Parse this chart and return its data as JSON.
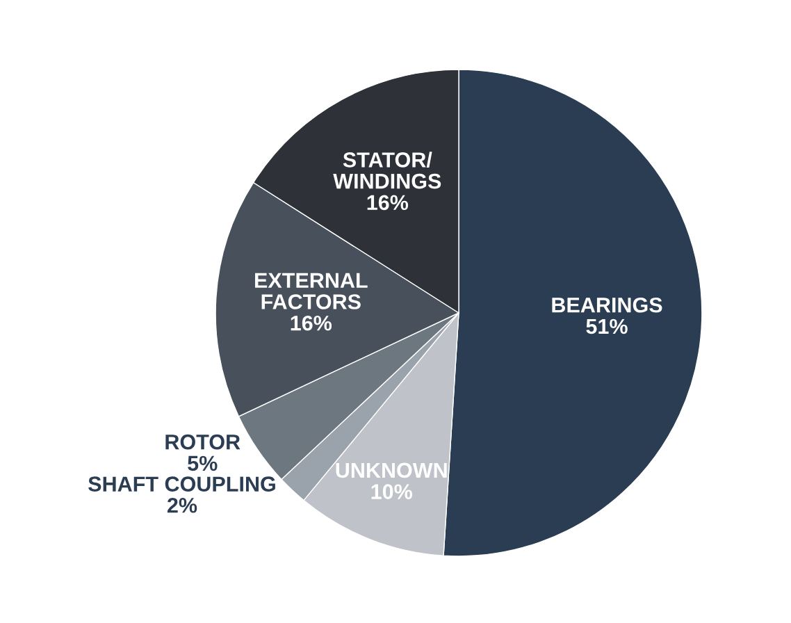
{
  "chart_data": {
    "type": "pie",
    "categories": [
      "BEARINGS",
      "UNKNOWN",
      "SHAFT COUPLING",
      "ROTOR",
      "EXTERNAL\nFACTORS",
      "STATOR/\nWINDINGS"
    ],
    "values": [
      51,
      10,
      2,
      5,
      16,
      16
    ],
    "value_labels": [
      "51%",
      "10%",
      "2%",
      "5%",
      "16%",
      "16%"
    ],
    "colors": [
      "#2b3d52",
      "#bfc3c9",
      "#9aa3ab",
      "#6d7780",
      "#47505b",
      "#2e3238"
    ],
    "legend": false
  }
}
